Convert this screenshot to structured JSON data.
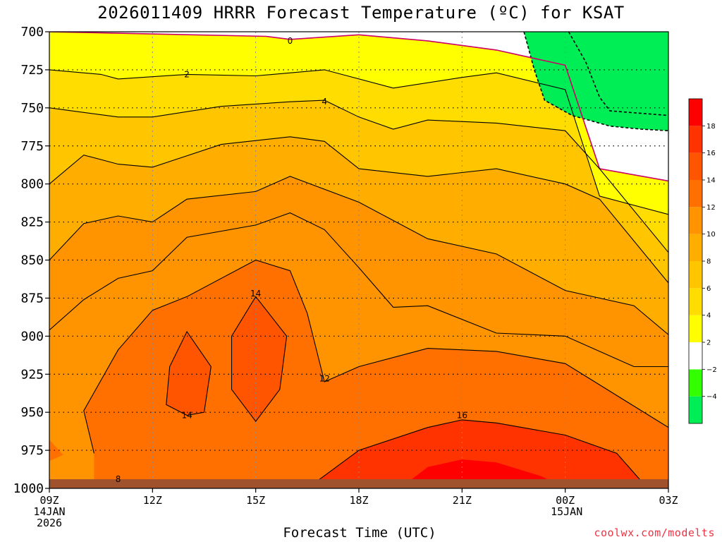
{
  "chart_data": {
    "type": "contour",
    "title": "2026011409 HRRR Forecast Temperature (ºC) for KSAT",
    "xlabel": "Forecast Time (UTC)",
    "ylabel": "",
    "credit": "coolwx.com/modelts",
    "y_axis": {
      "unit": "hPa",
      "inverted": true,
      "ylim": [
        1000,
        700
      ],
      "ticks": [
        700,
        725,
        750,
        775,
        800,
        825,
        850,
        875,
        900,
        925,
        950,
        975,
        1000
      ]
    },
    "x_axis": {
      "xlim_hours": [
        9,
        27
      ],
      "ticks": [
        {
          "hour": 9,
          "lines": [
            "09Z",
            "14JAN",
            "2026"
          ]
        },
        {
          "hour": 12,
          "lines": [
            "12Z"
          ]
        },
        {
          "hour": 15,
          "lines": [
            "15Z"
          ]
        },
        {
          "hour": 18,
          "lines": [
            "18Z"
          ]
        },
        {
          "hour": 21,
          "lines": [
            "21Z"
          ]
        },
        {
          "hour": 24,
          "lines": [
            "00Z",
            "15JAN"
          ]
        },
        {
          "hour": 27,
          "lines": [
            "03Z"
          ]
        }
      ]
    },
    "grid": true,
    "colorbar": {
      "position": "right",
      "ticks": [
        -4,
        -2,
        2,
        4,
        6,
        8,
        10,
        12,
        14,
        16,
        18
      ],
      "tick_labels": [
        "−4",
        "−2",
        "2",
        "4",
        "6",
        "8",
        "10",
        "12",
        "14",
        "16",
        "18"
      ],
      "bins": [
        {
          "from": -6,
          "to": -4,
          "color": "#00ee55"
        },
        {
          "from": -4,
          "to": -2,
          "color": "#33ff00"
        },
        {
          "from": -2,
          "to": 2,
          "color": "#ffffff"
        },
        {
          "from": 2,
          "to": 4,
          "color": "#ffff00"
        },
        {
          "from": 4,
          "to": 6,
          "color": "#ffdd00"
        },
        {
          "from": 6,
          "to": 8,
          "color": "#ffc600"
        },
        {
          "from": 8,
          "to": 10,
          "color": "#ffae00"
        },
        {
          "from": 10,
          "to": 12,
          "color": "#ff9400"
        },
        {
          "from": 12,
          "to": 14,
          "color": "#ff7000"
        },
        {
          "from": 14,
          "to": 16,
          "color": "#ff5500"
        },
        {
          "from": 16,
          "to": 18,
          "color": "#ff3300"
        },
        {
          "from": 18,
          "to": 20,
          "color": "#ff0000"
        }
      ]
    },
    "ground_color": "#a0522d",
    "series": [
      {
        "name": "-4",
        "color": "#00ee55",
        "style": "dashed",
        "points": [
          [
            22.8,
            700
          ],
          [
            23.1,
            725
          ],
          [
            23.4,
            745
          ],
          [
            24.2,
            755
          ],
          [
            25.3,
            762
          ],
          [
            26.2,
            764
          ],
          [
            27,
            765
          ]
        ]
      },
      {
        "name": "-2",
        "color": "#33ff00",
        "style": "dashed",
        "points": [
          [
            24.1,
            700
          ],
          [
            24.6,
            720
          ],
          [
            25.0,
            743
          ],
          [
            25.3,
            752
          ],
          [
            27,
            755
          ]
        ]
      },
      {
        "name": "0",
        "color": "#cc0066",
        "style": "solid",
        "label_at": [
          16,
          706
        ],
        "points": [
          [
            9,
            700
          ],
          [
            15.3,
            703
          ],
          [
            16,
            705
          ],
          [
            18,
            702
          ],
          [
            20,
            706
          ],
          [
            22,
            712
          ],
          [
            24,
            722
          ],
          [
            25,
            790
          ],
          [
            27,
            798
          ]
        ]
      },
      {
        "name": "2",
        "color": "#000000",
        "style": "solid",
        "label_at": [
          13,
          728
        ],
        "points": [
          [
            9,
            725
          ],
          [
            10.5,
            728
          ],
          [
            11,
            731
          ],
          [
            13,
            728
          ],
          [
            15,
            729
          ],
          [
            17,
            725
          ],
          [
            19,
            737
          ],
          [
            21,
            730
          ],
          [
            22,
            727
          ],
          [
            24,
            738
          ],
          [
            25,
            808
          ],
          [
            27,
            820
          ]
        ]
      },
      {
        "name": "4",
        "color": "#000000",
        "style": "solid",
        "label_at": [
          17,
          746
        ],
        "points": [
          [
            9,
            750
          ],
          [
            11,
            756
          ],
          [
            12,
            756
          ],
          [
            14,
            749
          ],
          [
            16,
            746
          ],
          [
            17,
            745
          ],
          [
            18,
            756
          ],
          [
            19,
            764
          ],
          [
            20,
            758
          ],
          [
            22,
            760
          ],
          [
            24,
            765
          ],
          [
            25,
            790
          ],
          [
            27,
            845
          ]
        ]
      },
      {
        "name": "6",
        "color": "#000000",
        "style": "solid",
        "label_at": null,
        "points": [
          [
            9,
            800
          ],
          [
            10,
            781
          ],
          [
            11,
            787
          ],
          [
            12,
            789
          ],
          [
            14,
            774
          ],
          [
            16,
            769
          ],
          [
            17,
            772
          ],
          [
            18,
            790
          ],
          [
            20,
            795
          ],
          [
            22,
            790
          ],
          [
            24,
            800
          ],
          [
            25,
            810
          ],
          [
            27,
            865
          ]
        ]
      },
      {
        "name": "8",
        "color": "#000000",
        "style": "solid",
        "label_at": [
          11,
          994
        ],
        "points": [
          [
            9,
            850
          ],
          [
            10,
            826
          ],
          [
            11,
            821
          ],
          [
            12,
            825
          ],
          [
            13,
            810
          ],
          [
            15,
            805
          ],
          [
            16,
            795
          ],
          [
            18,
            812
          ],
          [
            20,
            836
          ],
          [
            22,
            846
          ],
          [
            24,
            870
          ],
          [
            26,
            880
          ],
          [
            27,
            899
          ]
        ]
      },
      {
        "name": "10",
        "color": "#000000",
        "style": "solid",
        "label_at": null,
        "points": [
          [
            9,
            896
          ],
          [
            10,
            876
          ],
          [
            11,
            862
          ],
          [
            12,
            857
          ],
          [
            13,
            835
          ],
          [
            15,
            827
          ],
          [
            16,
            819
          ],
          [
            17,
            830
          ],
          [
            18,
            855
          ],
          [
            19,
            881
          ],
          [
            20,
            880
          ],
          [
            22,
            898
          ],
          [
            24,
            900
          ],
          [
            26,
            920
          ],
          [
            27,
            920
          ]
        ]
      },
      {
        "name": "12",
        "color": "#000000",
        "style": "solid",
        "label_at": [
          17,
          928
        ],
        "points": [
          [
            10.3,
            977
          ],
          [
            10,
            949
          ],
          [
            11,
            909
          ],
          [
            12,
            883
          ],
          [
            13,
            874
          ],
          [
            15,
            850
          ],
          [
            16,
            857
          ],
          [
            16.5,
            885
          ],
          [
            17,
            930
          ],
          [
            18,
            920
          ],
          [
            20,
            908
          ],
          [
            22,
            910
          ],
          [
            24,
            918
          ],
          [
            27,
            960
          ]
        ]
      },
      {
        "name": "14",
        "color": "#000000",
        "style": "solid",
        "label_at": [
          13,
          952
        ],
        "points": [
          [
            12.5,
            920
          ],
          [
            13,
            897
          ],
          [
            13.7,
            920
          ],
          [
            13.5,
            950
          ],
          [
            13,
            952
          ],
          [
            12.4,
            945
          ],
          [
            12.5,
            920
          ]
        ]
      },
      {
        "name": "14",
        "color": "#000000",
        "style": "solid",
        "label_at": [
          15,
          872
        ],
        "points": [
          [
            14.3,
            900
          ],
          [
            15,
            874
          ],
          [
            15.9,
            900
          ],
          [
            15.7,
            935
          ],
          [
            15,
            956
          ],
          [
            14.3,
            935
          ],
          [
            14.3,
            900
          ]
        ]
      },
      {
        "name": "16",
        "color": "#000000",
        "style": "solid",
        "label_at": [
          21,
          952
        ],
        "points": [
          [
            16.8,
            995
          ],
          [
            18,
            975
          ],
          [
            20,
            960
          ],
          [
            21,
            955
          ],
          [
            22,
            957
          ],
          [
            24,
            965
          ],
          [
            25.5,
            977
          ],
          [
            26.2,
            995
          ]
        ]
      }
    ],
    "annotations": [
      "0",
      "2",
      "4",
      "8",
      "12",
      "14",
      "14",
      "16"
    ]
  }
}
